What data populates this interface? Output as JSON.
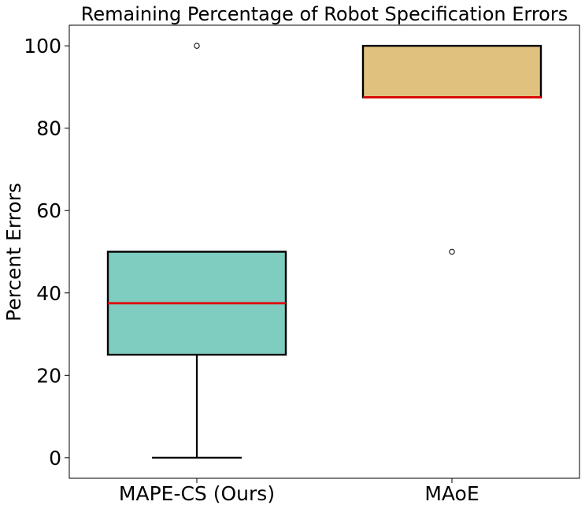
{
  "chart_data": {
    "type": "box",
    "title": "Remaining Percentage of Robot Specification Errors",
    "xlabel": "",
    "ylabel": "Percent Errors",
    "ylim": [
      -5,
      105
    ],
    "yticks": [
      0,
      20,
      40,
      60,
      80,
      100
    ],
    "grid": false,
    "categories": [
      "MAPE-CS (Ours)",
      "MAoE"
    ],
    "boxes": [
      {
        "category": "MAPE-CS (Ours)",
        "whisker_low": 0,
        "q1": 25,
        "median": 37.5,
        "q3": 50,
        "whisker_high": 50,
        "outliers": [
          100
        ],
        "color": "#7fccc0"
      },
      {
        "category": "MAoE",
        "whisker_low": 87.5,
        "q1": 87.5,
        "median": 87.5,
        "q3": 100,
        "whisker_high": 100,
        "outliers": [
          50
        ],
        "color": "#e0c27e"
      }
    ],
    "median_color": "#e00000"
  }
}
